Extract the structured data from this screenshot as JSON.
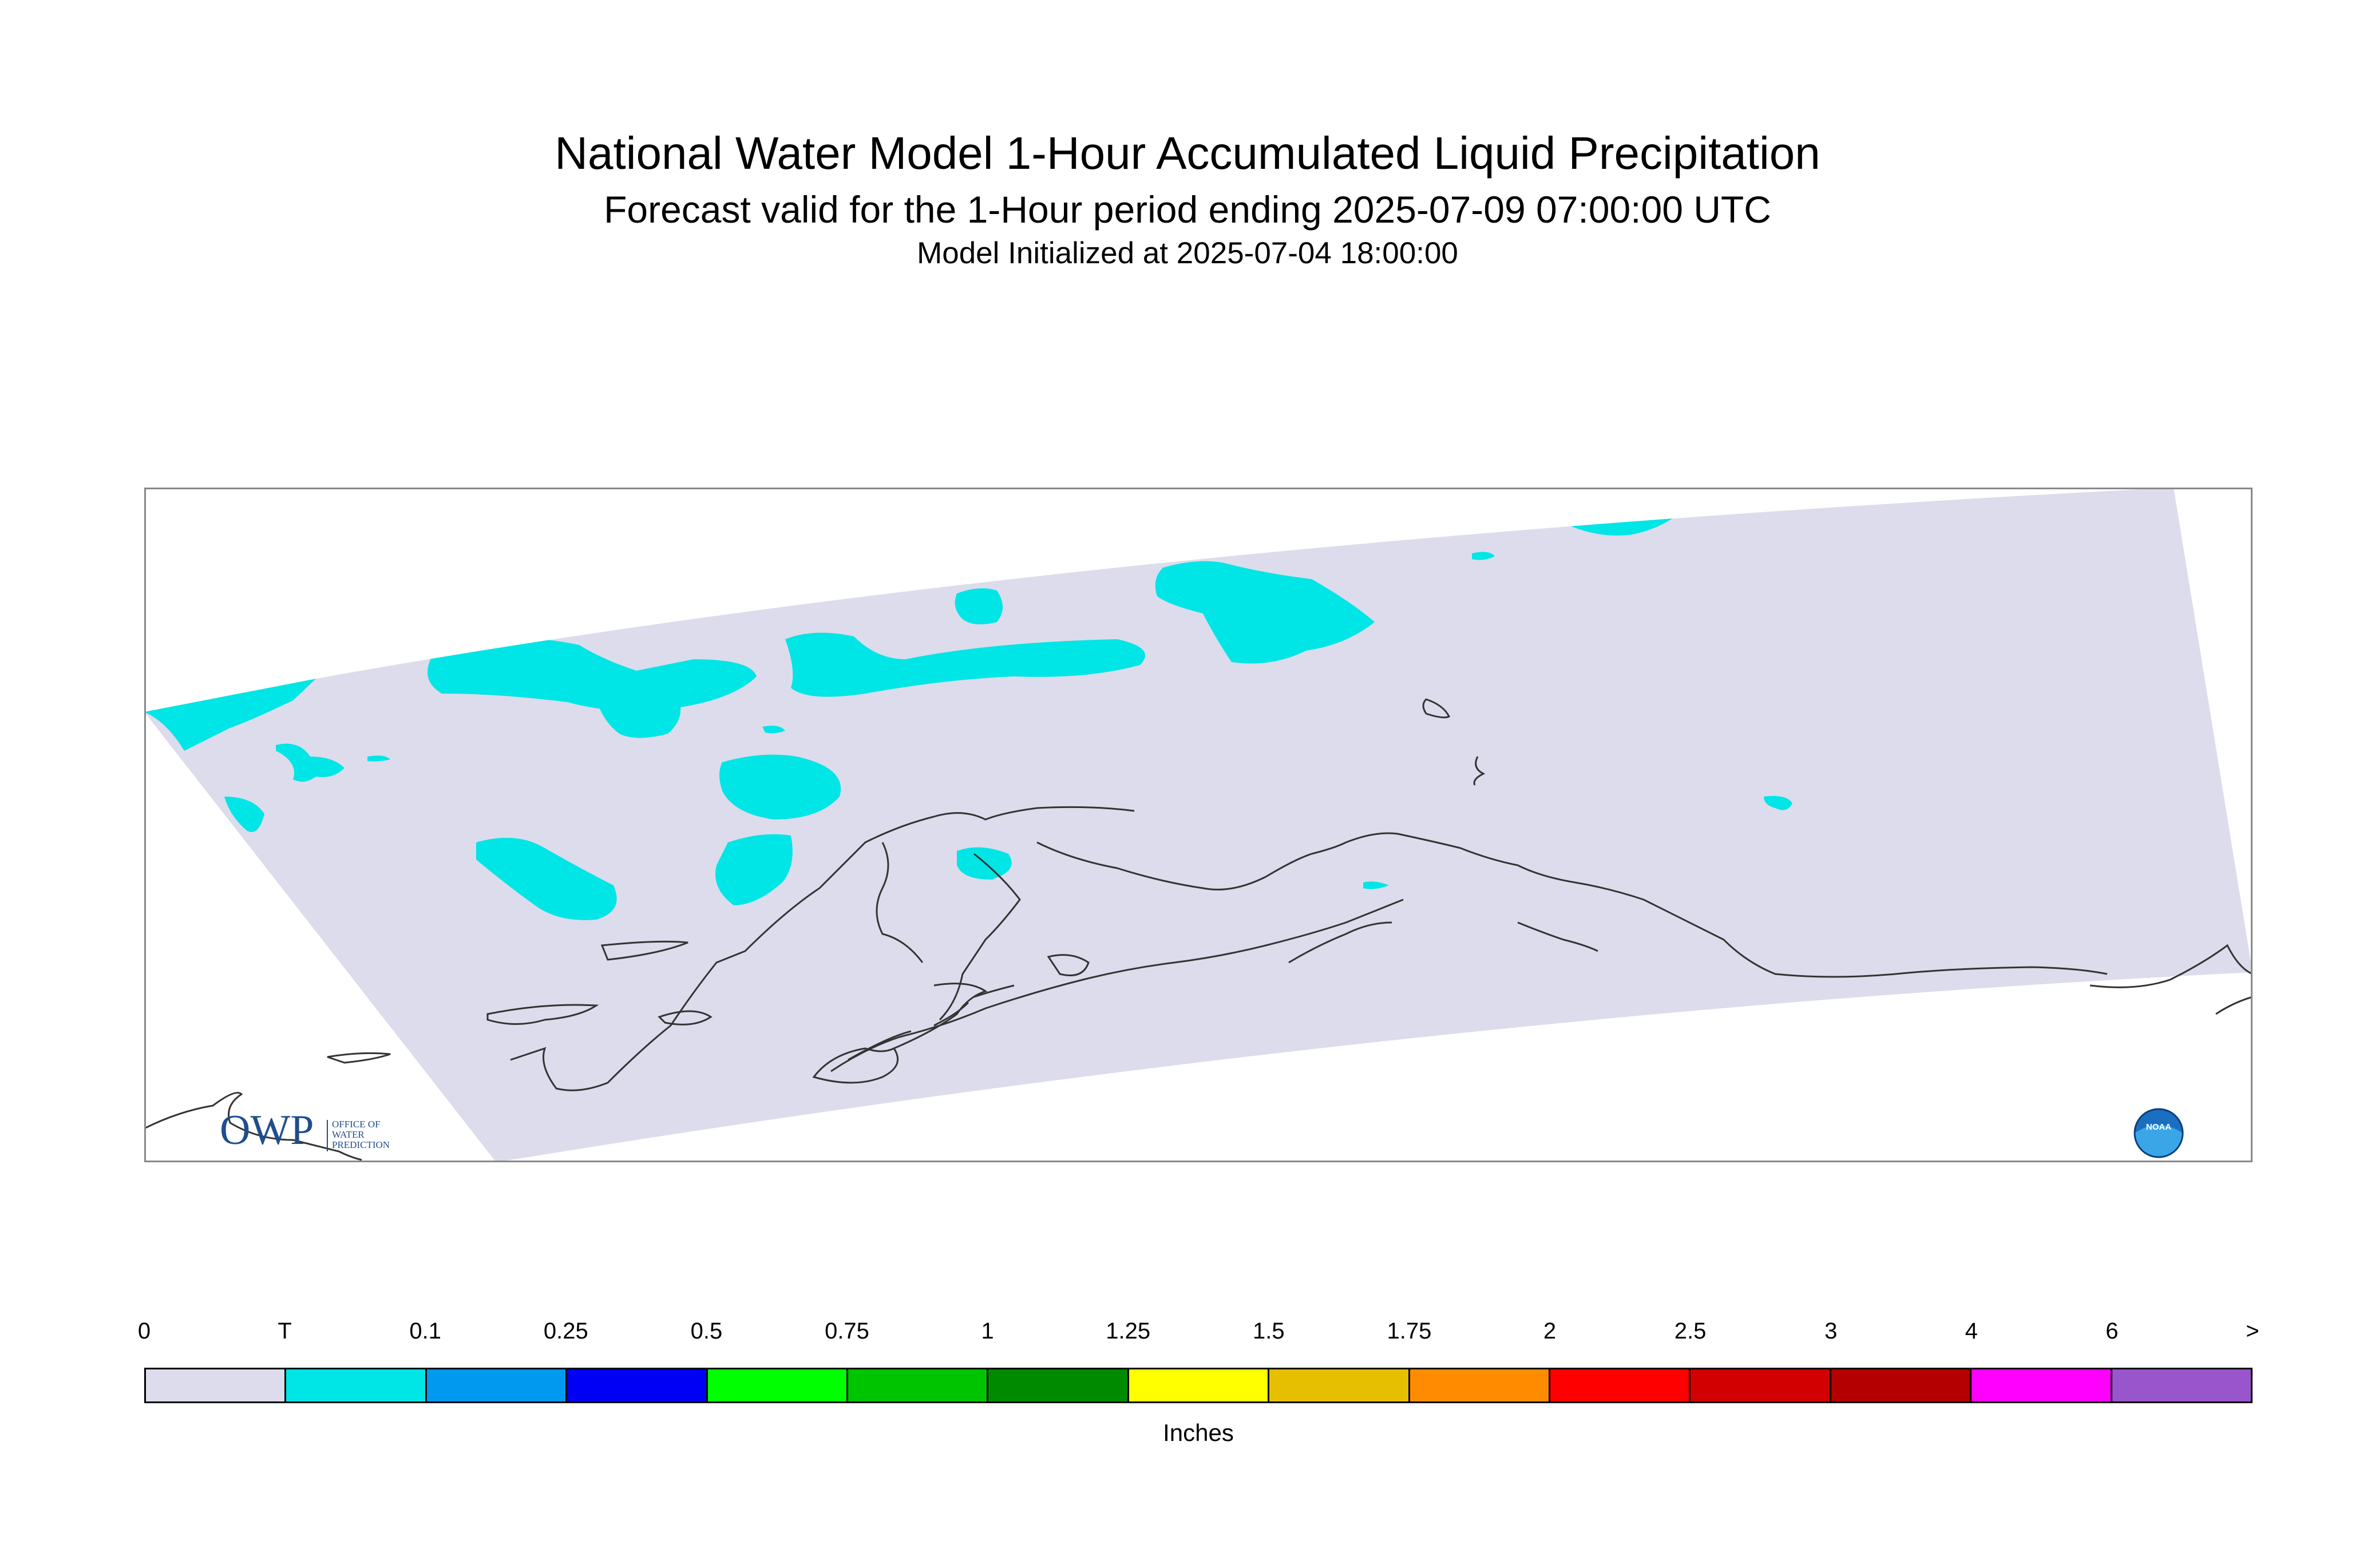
{
  "title": "National Water Model 1-Hour Accumulated Liquid Precipitation",
  "subtitle": "Forecast valid for the 1-Hour period ending 2025-07-09 07:00:00 UTC",
  "init_line": "Model Initialized at 2025-07-04 18:00:00",
  "colors": {
    "domain": "#dcdcec",
    "coast": "#333333",
    "frame": "#888888",
    "logo_blue": "#1f4e8c"
  },
  "legend": {
    "units": "Inches",
    "ticks": [
      "0",
      "T",
      "0.1",
      "0.25",
      "0.5",
      "0.75",
      "1",
      "1.25",
      "1.5",
      "1.75",
      "2",
      "2.5",
      "3",
      "4",
      "6",
      ">"
    ],
    "colors": [
      "#dcdcec",
      "#00e5e5",
      "#0099f0",
      "#0000f5",
      "#00ff00",
      "#00c400",
      "#008a00",
      "#ffff00",
      "#e6c000",
      "#ff8c00",
      "#ff0000",
      "#d20000",
      "#b40000",
      "#ff00ff",
      "#9955cc"
    ]
  },
  "logos": {
    "owp_mark": "OWP",
    "owp_text": [
      "OFFICE OF",
      "WATER",
      "PREDICTION"
    ],
    "noaa_text": "NOAA"
  }
}
